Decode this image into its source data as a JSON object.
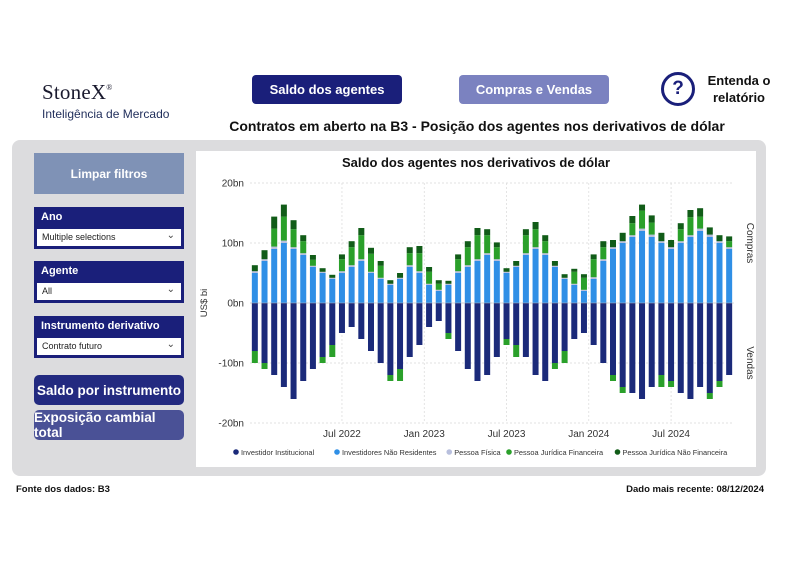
{
  "brand": {
    "name": "StoneX",
    "trademark": "®",
    "subtitle": "Inteligência de Mercado"
  },
  "nav": {
    "active_label": "Saldo dos agentes",
    "inactive_label": "Compras e Vendas"
  },
  "help": {
    "icon": "question-circle-icon",
    "label": "Entenda o relatório"
  },
  "page_title": "Contratos em aberto na B3 - Posição dos agentes nos derivativos de dólar",
  "sidebar": {
    "clear_label": "Limpar filtros",
    "filters": [
      {
        "label": "Ano",
        "value": "Multiple selections"
      },
      {
        "label": "Agente",
        "value": "All"
      },
      {
        "label": "Instrumento derivativo",
        "value": "Contrato futuro"
      }
    ],
    "actions": [
      "Saldo por instrumento",
      "Exposição cambial total"
    ]
  },
  "chart_data": {
    "type": "bar",
    "stacked": true,
    "title": "Saldo dos agentes nos derivativos de dólar",
    "ylabel": "US$ bi",
    "right_labels": [
      "Compras",
      "Vendas"
    ],
    "ylim": [
      -20,
      20
    ],
    "yticks": [
      "20bn",
      "10bn",
      "0bn",
      "-10bn",
      "-20bn"
    ],
    "ytick_values": [
      20,
      10,
      0,
      -10,
      -20
    ],
    "xticks": [
      "Jul 2022",
      "Jan 2023",
      "Jul 2023",
      "Jan 2024",
      "Jul 2024"
    ],
    "xticks_pos": [
      0.19,
      0.36,
      0.53,
      0.7,
      0.87
    ],
    "grid": true,
    "legend_position": "bottom",
    "series": [
      {
        "name": "Investidor Institucional",
        "color": "#1b2a7a",
        "values": [
          -8,
          -10,
          -12,
          -14,
          -16,
          -13,
          -11,
          -9,
          -7,
          -5,
          -4,
          -6,
          -8,
          -10,
          -12,
          -11,
          -9,
          -7,
          -4,
          -3,
          -5,
          -8,
          -11,
          -13,
          -12,
          -9,
          -6,
          -7,
          -9,
          -12,
          -13,
          -10,
          -8,
          -6,
          -5,
          -7,
          -10,
          -12,
          -14,
          -15,
          -16,
          -14,
          -12,
          -13,
          -15,
          -16,
          -14,
          -15,
          -13,
          -12
        ]
      },
      {
        "name": "Investidores Não Residentes",
        "color": "#2f8fe6",
        "values": [
          5,
          7,
          9,
          10,
          9,
          8,
          6,
          5,
          4,
          5,
          6,
          7,
          5,
          4,
          3,
          4,
          6,
          5,
          3,
          2,
          3,
          5,
          6,
          7,
          8,
          7,
          5,
          6,
          8,
          9,
          8,
          6,
          4,
          3,
          2,
          4,
          7,
          9,
          10,
          11,
          12,
          11,
          10,
          9,
          10,
          11,
          12,
          11,
          10,
          9
        ]
      },
      {
        "name": "Pessoa Física",
        "color": "#b8bfdd",
        "values": [
          0.3,
          0.3,
          0.4,
          0.4,
          0.3,
          0.3,
          0.2,
          0.2,
          0.2,
          0.3,
          0.3,
          0.3,
          0.2,
          0.2,
          0.2,
          0.2,
          0.3,
          0.3,
          0.2,
          0.2,
          0.2,
          0.3,
          0.3,
          0.3,
          0.3,
          0.3,
          0.2,
          0.2,
          0.3,
          0.3,
          0.3,
          0.2,
          0.2,
          0.2,
          0.2,
          0.3,
          0.3,
          0.3,
          0.3,
          0.3,
          0.4,
          0.4,
          0.3,
          0.3,
          0.3,
          0.3,
          0.4,
          0.4,
          0.3,
          0.3
        ]
      },
      {
        "name": "Pessoa Jurídica Financeira",
        "color": "#2aa02a",
        "values": [
          -2,
          -1,
          3,
          4,
          3,
          2,
          1,
          -1,
          -2,
          2,
          3,
          4,
          3,
          2,
          -1,
          -2,
          2,
          3,
          2,
          1,
          -1,
          2,
          3,
          4,
          3,
          2,
          -1,
          -2,
          3,
          3,
          2,
          -1,
          -2,
          2,
          2,
          3,
          2,
          -1,
          -1,
          2,
          3,
          2,
          -2,
          -1,
          2,
          3,
          2,
          -1,
          -1,
          1
        ]
      },
      {
        "name": "Pessoa Jurídica Não Financeira",
        "color": "#115c18",
        "values": [
          1,
          1.5,
          2,
          2,
          1.5,
          1,
          0.8,
          0.6,
          0.5,
          0.8,
          1,
          1.2,
          1,
          0.8,
          0.6,
          0.8,
          1,
          1.2,
          0.8,
          0.6,
          0.5,
          0.8,
          1,
          1.2,
          1,
          0.8,
          0.6,
          0.8,
          1,
          1.2,
          1,
          0.8,
          0.6,
          0.5,
          0.6,
          0.8,
          1,
          1.2,
          1.4,
          1.2,
          1,
          1.2,
          1.4,
          1.2,
          1,
          1.2,
          1.4,
          1.2,
          1,
          0.8
        ]
      }
    ]
  },
  "footer": {
    "source": "Fonte dos dados: B3",
    "latest": "Dado mais recente: 08/12/2024"
  }
}
